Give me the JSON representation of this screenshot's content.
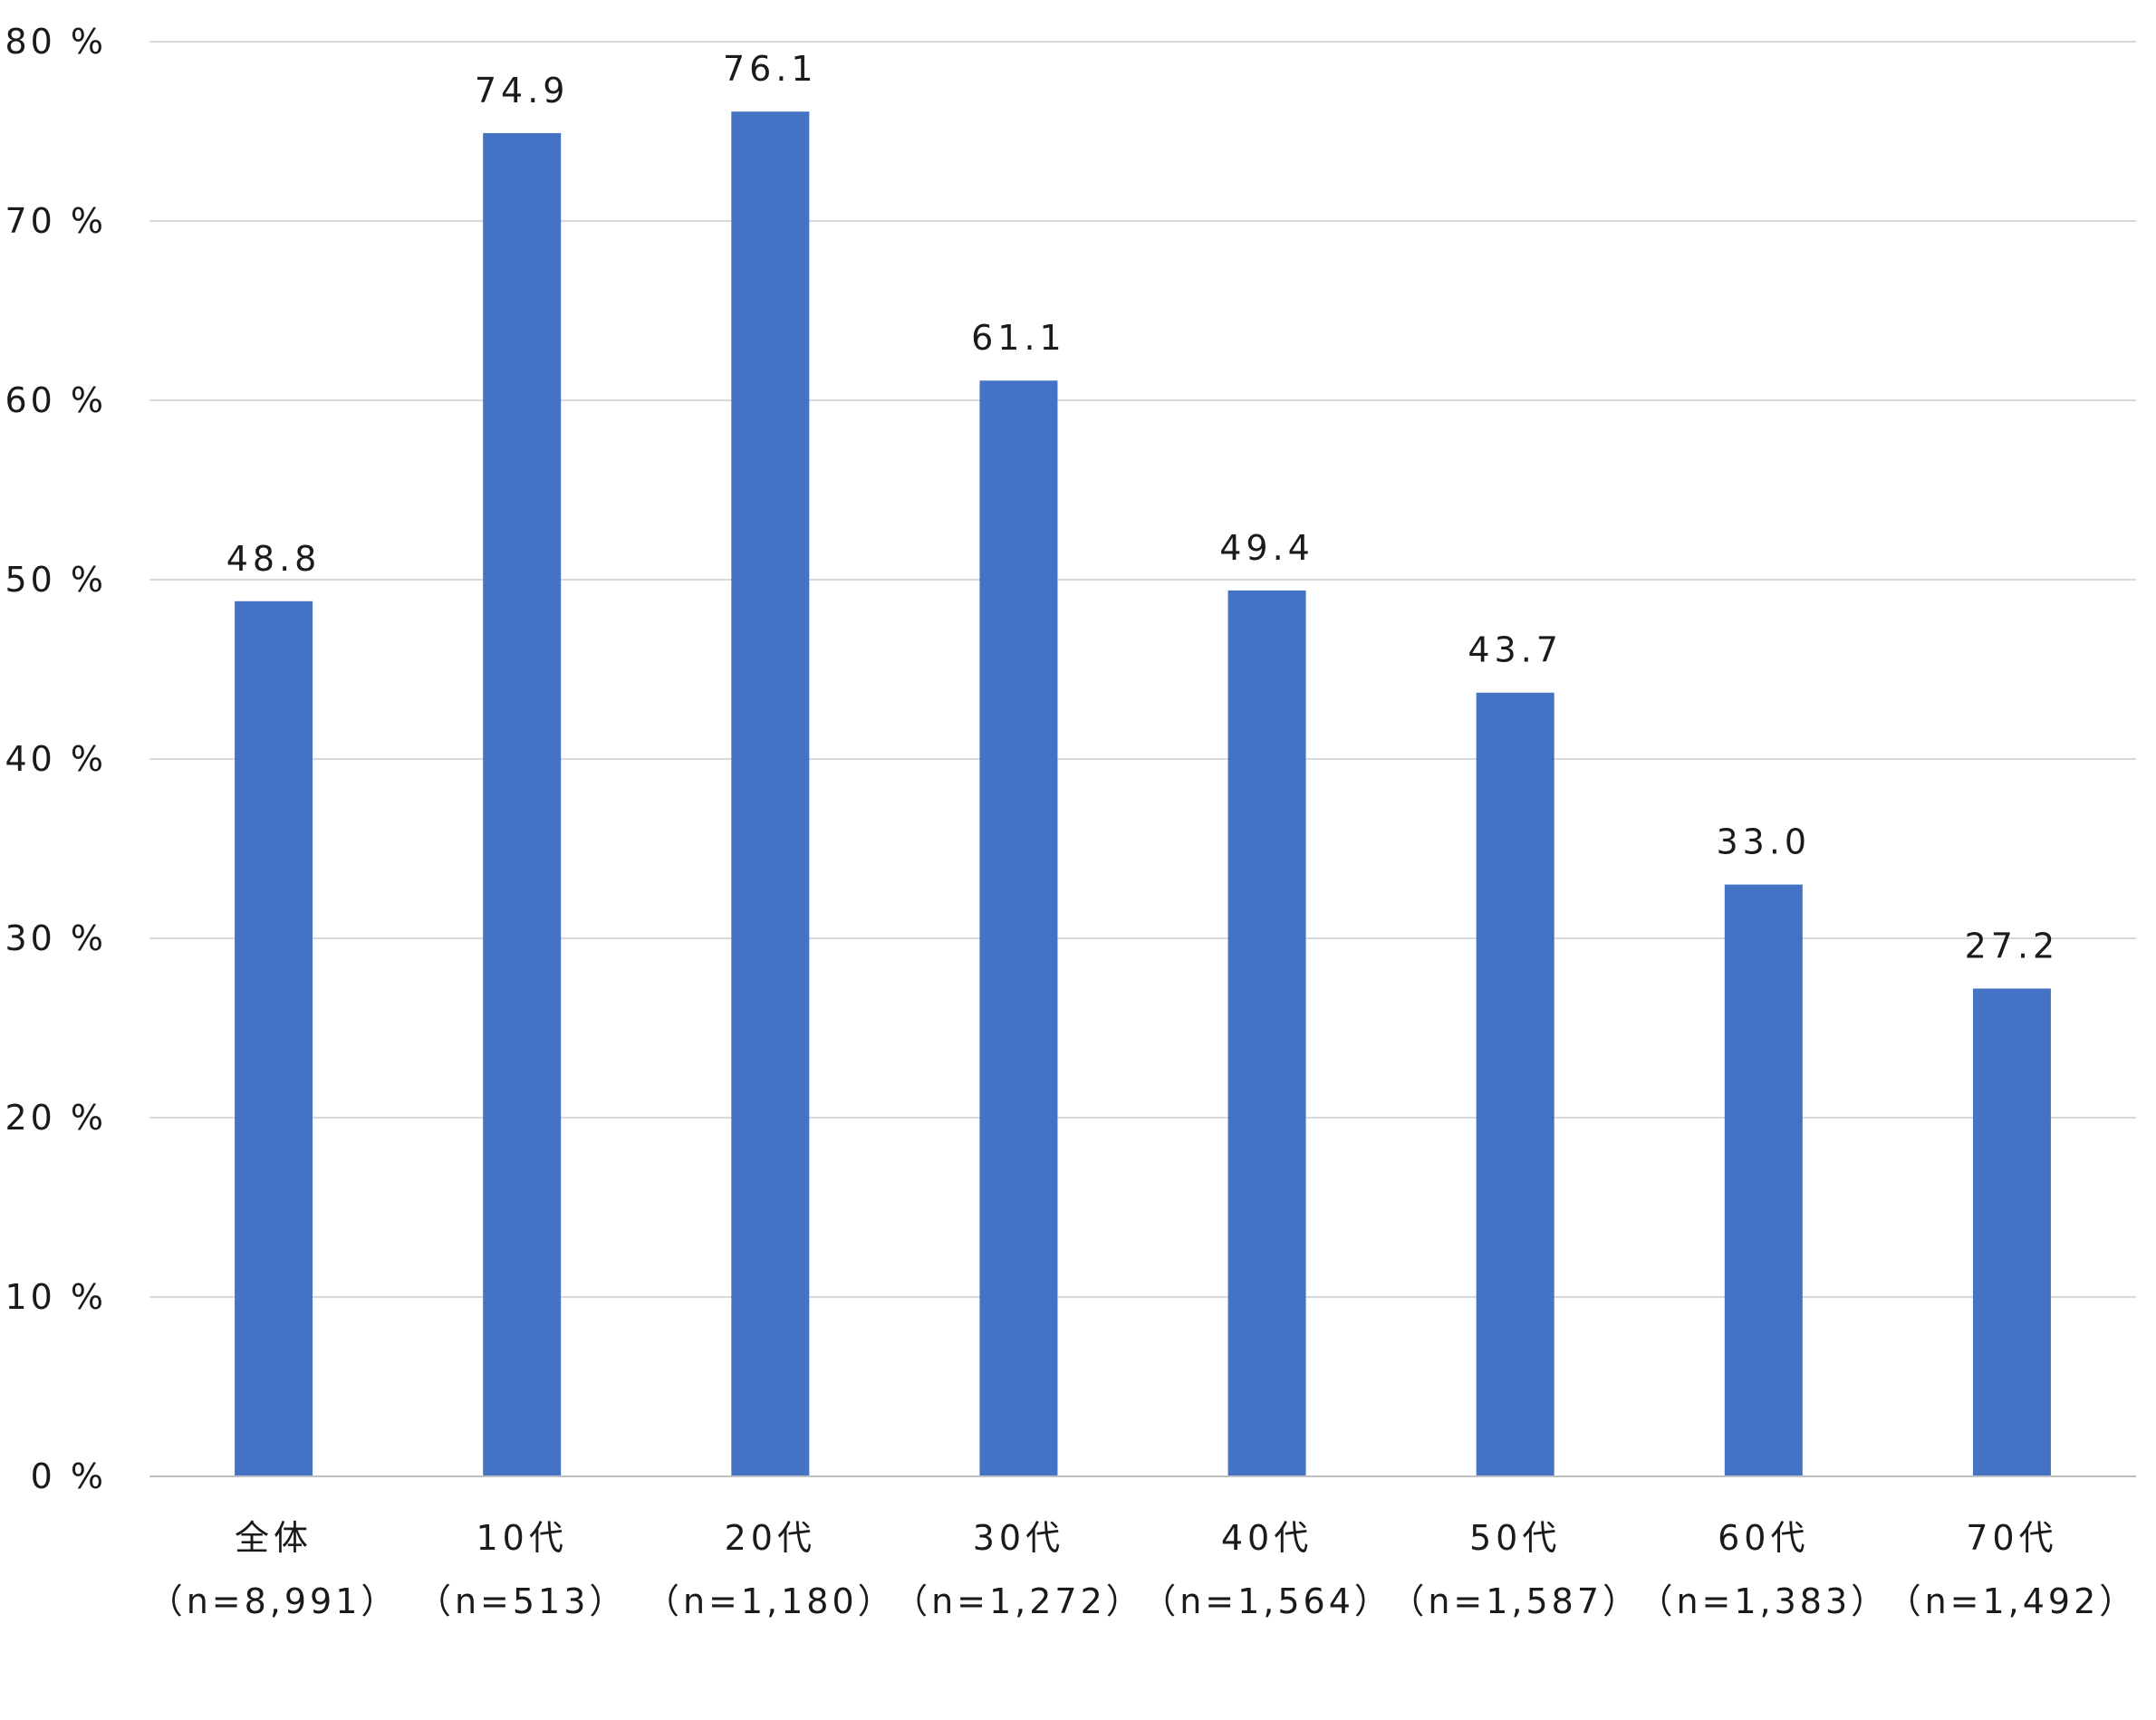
{
  "chart_data": {
    "type": "bar",
    "title": "",
    "xlabel": "",
    "ylabel": "",
    "ylim": [
      0,
      80
    ],
    "yticks": [
      0,
      10,
      20,
      30,
      40,
      50,
      60,
      70,
      80
    ],
    "ytick_labels": [
      "0 %",
      "10 %",
      "20 %",
      "30 %",
      "40 %",
      "50 %",
      "60 %",
      "70 %",
      "80 %"
    ],
    "categories": [
      "全体",
      "10代",
      "20代",
      "30代",
      "40代",
      "50代",
      "60代",
      "70代"
    ],
    "sample_sizes": [
      "（n=8,991）",
      "（n=513）",
      "（n=1,180）",
      "（n=1,272）",
      "（n=1,564）",
      "（n=1,587）",
      "（n=1,383）",
      "（n=1,492）"
    ],
    "values": [
      48.8,
      74.9,
      76.1,
      61.1,
      49.4,
      43.7,
      33.0,
      27.2
    ],
    "data_labels": [
      "48.8",
      "74.9",
      "76.1",
      "61.1",
      "49.4",
      "43.7",
      "33.0",
      "27.2"
    ],
    "bar_color": "#4472C4",
    "grid": true,
    "gridline_color": "#d9d9d9",
    "legend": "none"
  }
}
